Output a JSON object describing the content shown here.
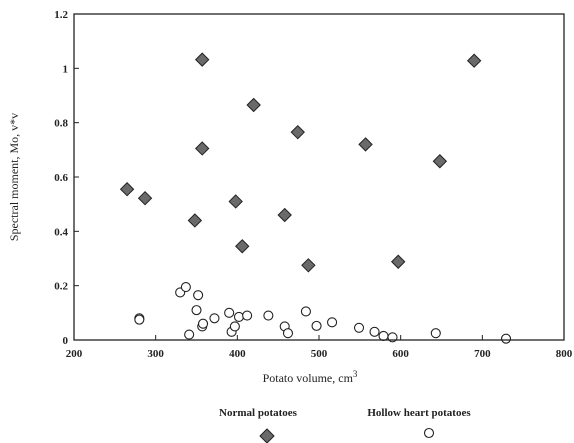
{
  "chart_data": {
    "type": "scatter",
    "xlabel": "Potato volume, cm",
    "xlabel_superscript": "3",
    "ylabel": "Spectral moment, Mo, v*v",
    "xlim": [
      200,
      800
    ],
    "ylim": [
      0,
      1.2
    ],
    "x_ticks": [
      {
        "value": 200,
        "label": "200"
      },
      {
        "value": 300,
        "label": "300"
      },
      {
        "value": 400,
        "label": "400"
      },
      {
        "value": 500,
        "label": "500"
      },
      {
        "value": 600,
        "label": "600"
      },
      {
        "value": 700,
        "label": "700"
      },
      {
        "value": 800,
        "label": "800"
      }
    ],
    "y_ticks": [
      {
        "value": 0,
        "label": "0"
      },
      {
        "value": 0.2,
        "label": "0.2"
      },
      {
        "value": 0.4,
        "label": "0.4"
      },
      {
        "value": 0.6,
        "label": "0.6"
      },
      {
        "value": 0.8,
        "label": "0.8"
      },
      {
        "value": 1,
        "label": "1"
      },
      {
        "value": 1.2,
        "label": "1.2"
      }
    ],
    "grid": false,
    "legend_position": "bottom",
    "series": [
      {
        "name": "Normal potatoes",
        "marker": "diamond",
        "color": "#6a6a6a",
        "points": [
          {
            "x": 265,
            "y": 0.555
          },
          {
            "x": 287,
            "y": 0.522
          },
          {
            "x": 348,
            "y": 0.44
          },
          {
            "x": 357,
            "y": 1.032
          },
          {
            "x": 357,
            "y": 0.705
          },
          {
            "x": 398,
            "y": 0.51
          },
          {
            "x": 406,
            "y": 0.345
          },
          {
            "x": 420,
            "y": 0.865
          },
          {
            "x": 458,
            "y": 0.46
          },
          {
            "x": 474,
            "y": 0.765
          },
          {
            "x": 487,
            "y": 0.275
          },
          {
            "x": 557,
            "y": 0.72
          },
          {
            "x": 597,
            "y": 0.288
          },
          {
            "x": 648,
            "y": 0.658
          },
          {
            "x": 690,
            "y": 1.028
          }
        ]
      },
      {
        "name": "Hollow heart potatoes",
        "marker": "circle",
        "color": "#ffffff",
        "points": [
          {
            "x": 280,
            "y": 0.08
          },
          {
            "x": 280,
            "y": 0.075
          },
          {
            "x": 330,
            "y": 0.175
          },
          {
            "x": 337,
            "y": 0.195
          },
          {
            "x": 341,
            "y": 0.02
          },
          {
            "x": 350,
            "y": 0.11
          },
          {
            "x": 352,
            "y": 0.165
          },
          {
            "x": 357,
            "y": 0.05
          },
          {
            "x": 358,
            "y": 0.06
          },
          {
            "x": 372,
            "y": 0.08
          },
          {
            "x": 390,
            "y": 0.1
          },
          {
            "x": 393,
            "y": 0.03
          },
          {
            "x": 397,
            "y": 0.05
          },
          {
            "x": 402,
            "y": 0.085
          },
          {
            "x": 412,
            "y": 0.09
          },
          {
            "x": 438,
            "y": 0.09
          },
          {
            "x": 458,
            "y": 0.05
          },
          {
            "x": 462,
            "y": 0.025
          },
          {
            "x": 484,
            "y": 0.105
          },
          {
            "x": 497,
            "y": 0.052
          },
          {
            "x": 516,
            "y": 0.065
          },
          {
            "x": 549,
            "y": 0.045
          },
          {
            "x": 568,
            "y": 0.03
          },
          {
            "x": 579,
            "y": 0.015
          },
          {
            "x": 590,
            "y": 0.01
          },
          {
            "x": 643,
            "y": 0.025
          },
          {
            "x": 729,
            "y": 0.005
          }
        ]
      }
    ]
  }
}
